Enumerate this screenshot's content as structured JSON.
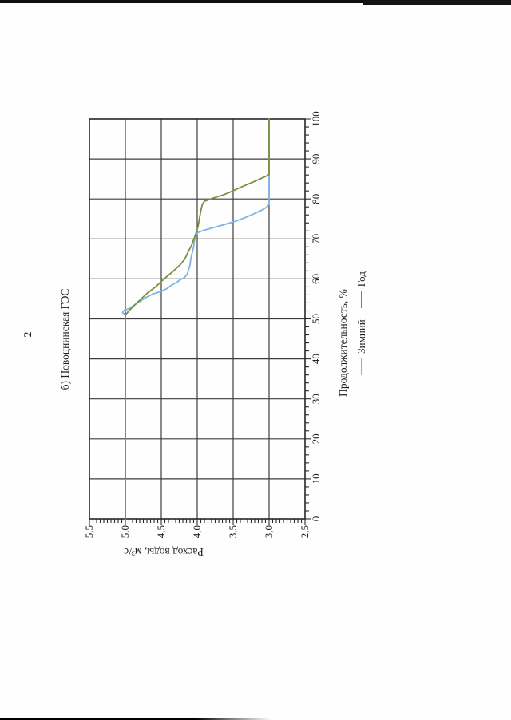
{
  "page": {
    "number": "2"
  },
  "colors": {
    "axis": "#262626",
    "grid": "#3c3c3c",
    "tick": "#2a2a2a",
    "text": "#1c1c1c",
    "series_winter": "#7FB2E5",
    "series_year": "#7A8F3C"
  },
  "chart_data": {
    "type": "line",
    "title": "б) Новоцнинская ГЭС",
    "xlabel": "Продолжительность, %",
    "ylabel": "Расход воды, м³/с",
    "xlim": [
      0,
      100
    ],
    "ylim": [
      2.5,
      5.5
    ],
    "grid": true,
    "legend_position": "bottom-center",
    "orientation": "rotated 90° counter-clockwise on portrait scanned page",
    "x_ticks": {
      "values": [
        0,
        10,
        20,
        30,
        40,
        50,
        60,
        70,
        80,
        90,
        100
      ],
      "labels": [
        "0",
        "10",
        "20",
        "30",
        "40",
        "50",
        "60",
        "70",
        "80",
        "90",
        "100"
      ],
      "minor_step": 2
    },
    "y_ticks": {
      "values": [
        5.5,
        5.0,
        4.5,
        4.0,
        3.5,
        3.0,
        2.5
      ],
      "labels": [
        "5,5",
        "5,0",
        "4,5",
        "4,0",
        "3,5",
        "3,0",
        "2,5"
      ],
      "minor_step": 0.05
    },
    "series": [
      {
        "name": "Зимний",
        "color": "#7FB2E5",
        "points": [
          [
            0,
            5.0
          ],
          [
            50.8,
            5.0
          ],
          [
            51.2,
            5.01
          ],
          [
            51.6,
            5.04
          ],
          [
            52.1,
            5.02
          ],
          [
            52.5,
            4.96
          ],
          [
            53.2,
            4.9
          ],
          [
            54.2,
            4.81
          ],
          [
            55.2,
            4.73
          ],
          [
            56.2,
            4.62
          ],
          [
            56.9,
            4.5
          ],
          [
            57.6,
            4.42
          ],
          [
            58.4,
            4.36
          ],
          [
            59.2,
            4.28
          ],
          [
            59.8,
            4.24
          ],
          [
            60.3,
            4.18
          ],
          [
            61.2,
            4.14
          ],
          [
            62.3,
            4.12
          ],
          [
            63.5,
            4.1
          ],
          [
            65,
            4.09
          ],
          [
            66.5,
            4.07
          ],
          [
            68,
            4.05
          ],
          [
            69.5,
            4.04
          ],
          [
            70.8,
            4.02
          ],
          [
            71.5,
            4.0
          ],
          [
            71.9,
            3.95
          ],
          [
            72.2,
            3.9
          ],
          [
            72.8,
            3.78
          ],
          [
            73.5,
            3.64
          ],
          [
            74.3,
            3.49
          ],
          [
            75.2,
            3.35
          ],
          [
            76.2,
            3.22
          ],
          [
            77.2,
            3.1
          ],
          [
            78,
            3.03
          ],
          [
            78.6,
            3.0
          ],
          [
            100,
            3.0
          ]
        ]
      },
      {
        "name": "Год",
        "color": "#7A8F3C",
        "points": [
          [
            0,
            5.0
          ],
          [
            51,
            5.0
          ],
          [
            52,
            4.95
          ],
          [
            53.5,
            4.87
          ],
          [
            55,
            4.78
          ],
          [
            56.5,
            4.69
          ],
          [
            58,
            4.58
          ],
          [
            59.5,
            4.49
          ],
          [
            60.5,
            4.43
          ],
          [
            62,
            4.33
          ],
          [
            63.5,
            4.24
          ],
          [
            64.8,
            4.18
          ],
          [
            65.8,
            4.15
          ],
          [
            67,
            4.12
          ],
          [
            68.3,
            4.08
          ],
          [
            69.8,
            4.05
          ],
          [
            71.3,
            4.02
          ],
          [
            73,
            3.99
          ],
          [
            75,
            3.97
          ],
          [
            77,
            3.95
          ],
          [
            78.6,
            3.93
          ],
          [
            79.4,
            3.9
          ],
          [
            80.2,
            3.78
          ],
          [
            81,
            3.64
          ],
          [
            81.8,
            3.53
          ],
          [
            82.8,
            3.41
          ],
          [
            83.8,
            3.28
          ],
          [
            84.8,
            3.15
          ],
          [
            85.7,
            3.04
          ],
          [
            86.1,
            3.0
          ],
          [
            100,
            3.0
          ]
        ]
      }
    ]
  }
}
